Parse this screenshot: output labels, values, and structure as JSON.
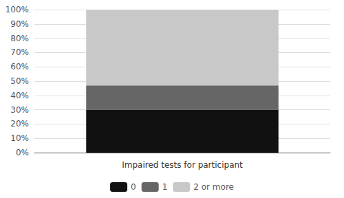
{
  "chart_data": {
    "type": "bar",
    "stacked": true,
    "xlabel": "Impaired tests for participant",
    "categories": [
      null
    ],
    "series": [
      {
        "name": "0",
        "color": "#111111",
        "values": [
          30
        ]
      },
      {
        "name": "1",
        "color": "#666666",
        "values": [
          17
        ]
      },
      {
        "name": "2 or more",
        "color": "#c8c8c8",
        "values": [
          53
        ]
      }
    ],
    "ylim": [
      0,
      100
    ],
    "yticks": [
      {
        "value": 0,
        "label": "0%"
      },
      {
        "value": 10,
        "label": "10%"
      },
      {
        "value": 20,
        "label": "20%"
      },
      {
        "value": 30,
        "label": "30%"
      },
      {
        "value": 40,
        "label": "40%"
      },
      {
        "value": 50,
        "label": "50%"
      },
      {
        "value": 60,
        "label": "60%"
      },
      {
        "value": 70,
        "label": "70%"
      },
      {
        "value": 80,
        "label": "80%"
      },
      {
        "value": 90,
        "label": "90%"
      },
      {
        "value": 100,
        "label": "100%"
      }
    ],
    "grid": true,
    "legend": "bottom",
    "tick_labels": "y"
  }
}
